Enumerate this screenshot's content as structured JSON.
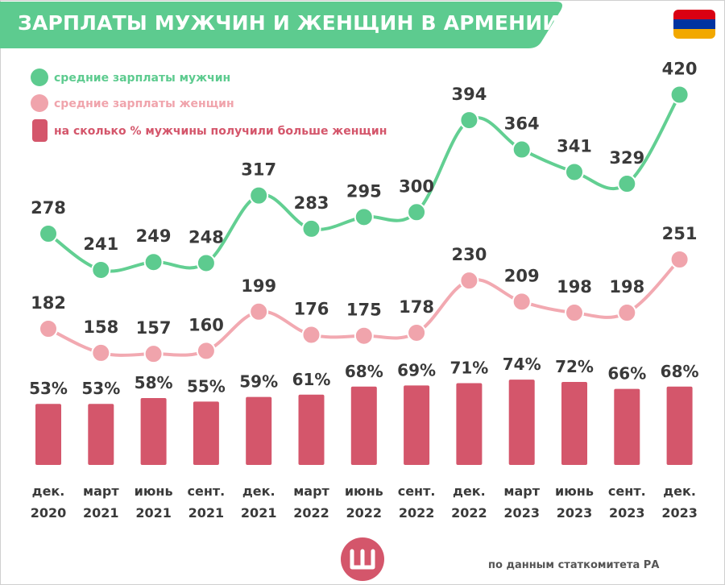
{
  "title": "ЗАРПЛАТЫ МУЖЧИН И ЖЕНЩИН В АРМЕНИИ",
  "source": "по данным статкомитета РА",
  "logo_icon": "letter-sh-logo-icon",
  "flag_icon": "armenia-flag-icon",
  "flag_colors": [
    "#d90012",
    "#0033a0",
    "#f2a800"
  ],
  "colors": {
    "banner": "#5dcb8f",
    "men": "#5dcb8f",
    "men_line": "#62cf92",
    "women": "#f0a4ac",
    "women_line": "#f2a9b1",
    "bars": "#d4566b",
    "value_text": "#3a3a3a",
    "legend_men_text": "#5dcb8f",
    "legend_women_text": "#f0a4ac",
    "legend_bars_text": "#d4566b"
  },
  "chart_data": {
    "type": "line",
    "categories": [
      [
        "дек.",
        "2020"
      ],
      [
        "март",
        "2021"
      ],
      [
        "июнь",
        "2021"
      ],
      [
        "сент.",
        "2021"
      ],
      [
        "дек.",
        "2021"
      ],
      [
        "март",
        "2022"
      ],
      [
        "июнь",
        "2022"
      ],
      [
        "сент.",
        "2022"
      ],
      [
        "дек.",
        "2022"
      ],
      [
        "март",
        "2023"
      ],
      [
        "июнь",
        "2023"
      ],
      [
        "сент.",
        "2023"
      ],
      [
        "дек.",
        "2023"
      ]
    ],
    "series": [
      {
        "name": "средние зарплаты мужчин",
        "type": "line",
        "values": [
          278,
          241,
          249,
          248,
          317,
          283,
          295,
          300,
          394,
          364,
          341,
          329,
          420
        ],
        "labels": [
          "278",
          "241",
          "249",
          "248",
          "317",
          "283",
          "295",
          "300",
          "394",
          "364",
          "341",
          "329",
          "420"
        ]
      },
      {
        "name": "средние зарплаты женщин",
        "type": "line",
        "values": [
          182,
          158,
          157,
          160,
          199,
          176,
          175,
          178,
          230,
          209,
          198,
          198,
          251
        ],
        "labels": [
          "182",
          "158",
          "157",
          "160",
          "199",
          "176",
          "175",
          "178",
          "230",
          "209",
          "198",
          "198",
          "251"
        ]
      },
      {
        "name": "на сколько % мужчины получили больше женщин",
        "type": "bar",
        "values": [
          53,
          53,
          58,
          55,
          59,
          61,
          68,
          69,
          71,
          74,
          72,
          66,
          68
        ],
        "labels": [
          "53%",
          "53%",
          "58%",
          "55%",
          "59%",
          "61%",
          "68%",
          "69%",
          "71%",
          "74%",
          "72%",
          "66%",
          "68%"
        ]
      }
    ],
    "grid": false,
    "legend_position": "top-left"
  }
}
